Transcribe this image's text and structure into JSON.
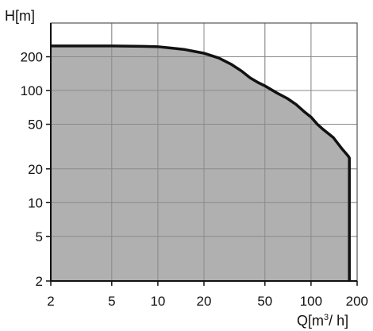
{
  "chart_data": {
    "type": "area",
    "title": "",
    "ylabel": "H[m]",
    "xlabel_prefix": "Q[m",
    "xlabel_sup": "3",
    "xlabel_suffix": "/ h]",
    "x_scale": "log",
    "y_scale": "log",
    "xlim": [
      2,
      200
    ],
    "ylim": [
      2,
      400
    ],
    "x_ticks": [
      2,
      5,
      10,
      20,
      50,
      100,
      200
    ],
    "x_tick_labels": [
      "2",
      "5",
      "10",
      "20",
      "50",
      "100",
      "200"
    ],
    "y_ticks": [
      2,
      5,
      10,
      20,
      50,
      100,
      200
    ],
    "y_tick_labels": [
      "2",
      "5",
      "10",
      "20",
      "50",
      "100",
      "200"
    ],
    "grid": true,
    "fill_color": "#a9a9a9",
    "line_color": "#111111",
    "series": [
      {
        "x": [
          2,
          3,
          5,
          8,
          10,
          12,
          15,
          20,
          25,
          30,
          35,
          40,
          45,
          50,
          60,
          70,
          80,
          90,
          100,
          110,
          120,
          140,
          160,
          175,
          178,
          178
        ],
        "y": [
          250,
          250,
          250,
          248,
          246,
          240,
          232,
          215,
          195,
          172,
          150,
          130,
          118,
          110,
          95,
          85,
          75,
          65,
          58,
          50,
          45,
          38,
          30,
          26,
          25,
          2
        ]
      }
    ]
  }
}
